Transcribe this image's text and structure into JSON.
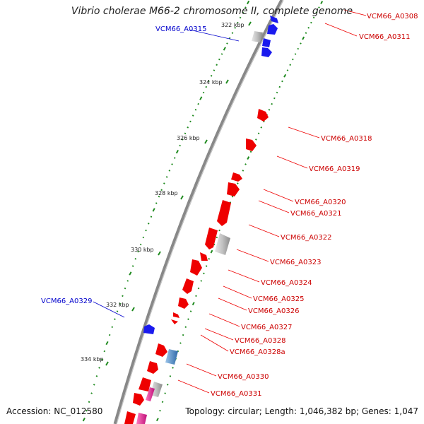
{
  "title": "Vibrio cholerae M66-2 chromosome II, complete genome",
  "footer": {
    "accession": "Accession: NC_012580",
    "topology": "Topology: circular; Length: 1,046,382 bp; Genes: 1,047"
  },
  "ticks": [
    "322 kbp",
    "324 kbp",
    "326 kbp",
    "328 kbp",
    "330 kbp",
    "332 kbp",
    "334 kbp"
  ],
  "labels_forward": [
    "VCM66_A0308",
    "VCM66_A0311",
    "VCM66_A0318",
    "VCM66_A0319",
    "VCM66_A0320",
    "VCM66_A0321",
    "VCM66_A0322",
    "VCM66_A0323",
    "VCM66_A0324",
    "VCM66_A0325",
    "VCM66_A0326",
    "VCM66_A0327",
    "VCM66_A0328",
    "VCM66_A0328a",
    "VCM66_A0330",
    "VCM66_A0331"
  ],
  "labels_reverse": [
    "VCM66_A0315",
    "VCM66_A0329"
  ],
  "colors": {
    "forward_gene": "#ee0000",
    "reverse_gene": "#1a1aee",
    "pseudo_gene": "#b0b0b0",
    "rna_gene": "#4a8ac8",
    "misc_gene": "#e0208a",
    "gc_skew": "#1e8a1e",
    "backbone": "#888888",
    "label_forward": "#cc0000",
    "label_reverse": "#0000cc"
  }
}
